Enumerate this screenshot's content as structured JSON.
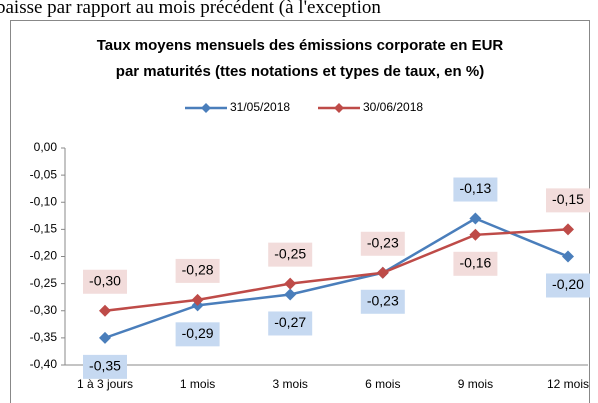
{
  "header": {
    "text": "baisse par rapport au mois précédent (à l'exception"
  },
  "chart_data": {
    "type": "line",
    "title": [
      "Taux moyens mensuels des émissions corporate en EUR",
      "par maturités (ttes notations et types de taux, en %)"
    ],
    "categories": [
      "1 à 3 jours",
      "1 mois",
      "3 mois",
      "6 mois",
      "9 mois",
      "12 mois"
    ],
    "series": [
      {
        "name": "31/05/2018",
        "color": "#4a7ebb",
        "label_color": "#c6d9f1",
        "values": [
          -0.35,
          -0.29,
          -0.27,
          -0.23,
          -0.13,
          -0.2
        ],
        "value_labels": [
          "-0,35",
          "-0,29",
          "-0,27",
          "-0,23",
          "-0,13",
          "-0,20"
        ]
      },
      {
        "name": "30/06/2018",
        "color": "#be4b48",
        "label_color": "#f2dcdb",
        "values": [
          -0.3,
          -0.28,
          -0.25,
          -0.23,
          -0.16,
          -0.15
        ],
        "value_labels": [
          "-0,30",
          "-0,28",
          "-0,25",
          "-0,23",
          "-0,16",
          "-0,15"
        ]
      }
    ],
    "ylim": [
      -0.4,
      0
    ],
    "yticks": [
      {
        "value": 0,
        "label": "0,00"
      },
      {
        "value": -0.05,
        "label": "-0,05"
      },
      {
        "value": -0.1,
        "label": "-0,10"
      },
      {
        "value": -0.15,
        "label": "-0,15"
      },
      {
        "value": -0.2,
        "label": "-0,20"
      },
      {
        "value": -0.25,
        "label": "-0,25"
      },
      {
        "value": -0.3,
        "label": "-0,30"
      },
      {
        "value": -0.35,
        "label": "-0,35"
      },
      {
        "value": -0.4,
        "label": "-0,40"
      }
    ],
    "legend": "top",
    "grid": false
  }
}
